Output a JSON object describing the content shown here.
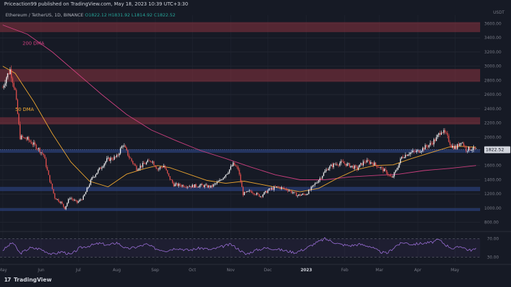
{
  "header": {
    "published": "Priceaction99 published on TradingView.com, May 18, 2023 10:39 UTC+3:30"
  },
  "symbol": {
    "name": "Ethereum / TetherUS, 1D, BINANCE",
    "ohlc": "O1822.12  H1831.92  L1814.92  C1822.52"
  },
  "branding": {
    "logo_mark": "17",
    "logo_text": "TradingView"
  },
  "colors": {
    "background": "#161a25",
    "bull": "#ffffff",
    "bear": "#ef5350",
    "dma50": "#f0a830",
    "dma200": "#d04080",
    "resistance_zone": "#8a3340",
    "support_zone": "#2a3f78",
    "rsi": "#9c6fd9"
  },
  "chart_data": {
    "type": "candlestick",
    "title": "",
    "currency_label": "USDT",
    "last_price_label": "1822.52",
    "y_ticks": [
      800,
      1000,
      1200,
      1400,
      1600,
      1800,
      2000,
      2200,
      2400,
      2600,
      2800,
      3000,
      3200,
      3400,
      3600
    ],
    "y_tick_labels": [
      "800.00",
      "1000.00",
      "1200.00",
      "1400.00",
      "1600.00",
      "1800.00",
      "2000.00",
      "2200.00",
      "2400.00",
      "2600.00",
      "2800.00",
      "3000.00",
      "3200.00",
      "3400.00",
      "3600.00"
    ],
    "ylim": [
      700,
      3720
    ],
    "x_labels": [
      "May",
      "Jun",
      "Jul",
      "Aug",
      "Sep",
      "Oct",
      "Nov",
      "Dec",
      "2023",
      "Feb",
      "Mar",
      "Apr",
      "May"
    ],
    "x_label_days": [
      0,
      31,
      61,
      92,
      123,
      153,
      184,
      214,
      245,
      276,
      304,
      335,
      365
    ],
    "xlim": [
      0,
      382
    ],
    "annotations": [
      {
        "text": "200 DMA",
        "x": 16,
        "y": 3300,
        "color": "#d04080"
      },
      {
        "text": "50 DMA",
        "x": 10,
        "y": 2370,
        "color": "#f0a830"
      }
    ],
    "zones": [
      {
        "y0": 3480,
        "y1": 3620,
        "kind": "resistance"
      },
      {
        "y0": 2780,
        "y1": 2960,
        "kind": "resistance"
      },
      {
        "y0": 2180,
        "y1": 2280,
        "kind": "resistance"
      },
      {
        "y0": 1780,
        "y1": 1830,
        "kind": "support"
      },
      {
        "y0": 1240,
        "y1": 1300,
        "kind": "support"
      },
      {
        "y0": 960,
        "y1": 1000,
        "kind": "support"
      }
    ],
    "price_anchors": [
      [
        0,
        2700
      ],
      [
        3,
        2850
      ],
      [
        6,
        2950
      ],
      [
        10,
        2650
      ],
      [
        14,
        2000
      ],
      [
        20,
        1970
      ],
      [
        28,
        1850
      ],
      [
        33,
        1750
      ],
      [
        37,
        1450
      ],
      [
        42,
        1150
      ],
      [
        47,
        1080
      ],
      [
        50,
        1000
      ],
      [
        54,
        1150
      ],
      [
        60,
        1080
      ],
      [
        65,
        1150
      ],
      [
        72,
        1420
      ],
      [
        78,
        1550
      ],
      [
        84,
        1680
      ],
      [
        92,
        1720
      ],
      [
        97,
        1900
      ],
      [
        102,
        1720
      ],
      [
        108,
        1560
      ],
      [
        114,
        1620
      ],
      [
        120,
        1680
      ],
      [
        125,
        1550
      ],
      [
        130,
        1600
      ],
      [
        134,
        1440
      ],
      [
        138,
        1330
      ],
      [
        145,
        1320
      ],
      [
        152,
        1310
      ],
      [
        160,
        1320
      ],
      [
        168,
        1300
      ],
      [
        175,
        1380
      ],
      [
        182,
        1520
      ],
      [
        186,
        1620
      ],
      [
        190,
        1550
      ],
      [
        194,
        1200
      ],
      [
        200,
        1240
      ],
      [
        208,
        1170
      ],
      [
        215,
        1260
      ],
      [
        222,
        1300
      ],
      [
        230,
        1260
      ],
      [
        238,
        1180
      ],
      [
        245,
        1200
      ],
      [
        250,
        1300
      ],
      [
        256,
        1420
      ],
      [
        262,
        1560
      ],
      [
        268,
        1620
      ],
      [
        274,
        1640
      ],
      [
        280,
        1600
      ],
      [
        286,
        1560
      ],
      [
        292,
        1660
      ],
      [
        298,
        1640
      ],
      [
        304,
        1580
      ],
      [
        310,
        1500
      ],
      [
        314,
        1420
      ],
      [
        318,
        1550
      ],
      [
        322,
        1720
      ],
      [
        328,
        1780
      ],
      [
        335,
        1800
      ],
      [
        340,
        1850
      ],
      [
        345,
        1900
      ],
      [
        350,
        1980
      ],
      [
        354,
        2100
      ],
      [
        358,
        2030
      ],
      [
        362,
        1880
      ],
      [
        366,
        1850
      ],
      [
        370,
        1950
      ],
      [
        374,
        1830
      ],
      [
        378,
        1840
      ],
      [
        382,
        1822
      ]
    ],
    "dma50": [
      [
        0,
        3000
      ],
      [
        10,
        2900
      ],
      [
        25,
        2500
      ],
      [
        40,
        2050
      ],
      [
        55,
        1650
      ],
      [
        70,
        1380
      ],
      [
        85,
        1300
      ],
      [
        100,
        1480
      ],
      [
        115,
        1560
      ],
      [
        125,
        1600
      ],
      [
        135,
        1570
      ],
      [
        150,
        1480
      ],
      [
        165,
        1390
      ],
      [
        180,
        1350
      ],
      [
        195,
        1380
      ],
      [
        210,
        1330
      ],
      [
        225,
        1280
      ],
      [
        240,
        1230
      ],
      [
        255,
        1280
      ],
      [
        270,
        1420
      ],
      [
        285,
        1540
      ],
      [
        300,
        1600
      ],
      [
        315,
        1610
      ],
      [
        330,
        1700
      ],
      [
        345,
        1780
      ],
      [
        360,
        1860
      ],
      [
        370,
        1870
      ],
      [
        382,
        1860
      ]
    ],
    "dma200": [
      [
        0,
        3580
      ],
      [
        20,
        3450
      ],
      [
        40,
        3200
      ],
      [
        60,
        2900
      ],
      [
        80,
        2600
      ],
      [
        100,
        2320
      ],
      [
        120,
        2100
      ],
      [
        140,
        1950
      ],
      [
        160,
        1810
      ],
      [
        180,
        1700
      ],
      [
        200,
        1580
      ],
      [
        220,
        1470
      ],
      [
        240,
        1400
      ],
      [
        260,
        1400
      ],
      [
        280,
        1440
      ],
      [
        300,
        1460
      ],
      [
        320,
        1480
      ],
      [
        340,
        1530
      ],
      [
        360,
        1560
      ],
      [
        382,
        1600
      ]
    ],
    "rsi": {
      "levels": [
        30,
        70
      ],
      "level_labels": [
        "30.00",
        "70.00"
      ],
      "ylim": [
        20,
        80
      ],
      "values": [
        [
          0,
          45
        ],
        [
          8,
          62
        ],
        [
          14,
          38
        ],
        [
          22,
          50
        ],
        [
          30,
          48
        ],
        [
          40,
          36
        ],
        [
          48,
          42
        ],
        [
          55,
          35
        ],
        [
          62,
          50
        ],
        [
          70,
          55
        ],
        [
          78,
          60
        ],
        [
          86,
          56
        ],
        [
          92,
          62
        ],
        [
          100,
          48
        ],
        [
          108,
          52
        ],
        [
          116,
          58
        ],
        [
          124,
          48
        ],
        [
          132,
          44
        ],
        [
          140,
          50
        ],
        [
          150,
          45
        ],
        [
          160,
          50
        ],
        [
          168,
          46
        ],
        [
          176,
          52
        ],
        [
          184,
          58
        ],
        [
          190,
          48
        ],
        [
          196,
          36
        ],
        [
          204,
          45
        ],
        [
          212,
          50
        ],
        [
          220,
          48
        ],
        [
          228,
          44
        ],
        [
          236,
          40
        ],
        [
          244,
          48
        ],
        [
          252,
          60
        ],
        [
          260,
          70
        ],
        [
          266,
          64
        ],
        [
          272,
          58
        ],
        [
          280,
          55
        ],
        [
          288,
          58
        ],
        [
          296,
          54
        ],
        [
          304,
          42
        ],
        [
          310,
          38
        ],
        [
          318,
          56
        ],
        [
          324,
          62
        ],
        [
          330,
          58
        ],
        [
          338,
          60
        ],
        [
          346,
          62
        ],
        [
          352,
          68
        ],
        [
          358,
          56
        ],
        [
          364,
          48
        ],
        [
          370,
          54
        ],
        [
          376,
          45
        ],
        [
          382,
          47
        ]
      ]
    }
  }
}
